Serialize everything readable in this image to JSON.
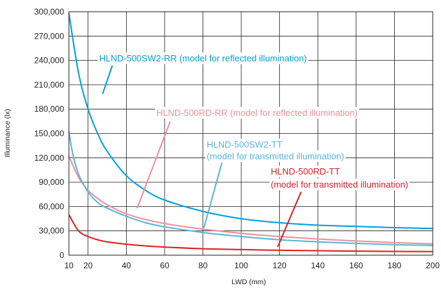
{
  "chart_data": {
    "type": "line",
    "xlabel": "LWD (mm)",
    "ylabel": "Illuminance (lx)",
    "xlim": [
      10,
      200
    ],
    "ylim": [
      0,
      300000
    ],
    "grid": true,
    "x_ticks": [
      "10",
      "20",
      "40",
      "60",
      "80",
      "100",
      "120",
      "140",
      "160",
      "180",
      "200"
    ],
    "y_ticks": [
      "0",
      "30,000",
      "60,000",
      "90,000",
      "120,000",
      "150,000",
      "180,000",
      "210,000",
      "240,000",
      "270,000",
      "300,000"
    ],
    "series": [
      {
        "name": "HLND-500SW2-RR",
        "color": "#00a0dc",
        "x": [
          10,
          15,
          20,
          25,
          30,
          40,
          50,
          60,
          80,
          100,
          120,
          140,
          160,
          180,
          200
        ],
        "y": [
          298000,
          225000,
          180000,
          150000,
          128000,
          98000,
          80000,
          68000,
          54000,
          45000,
          40000,
          37000,
          35500,
          34000,
          33000
        ]
      },
      {
        "name": "HLND-500RD-RR",
        "color": "#f08f98",
        "x": [
          10,
          15,
          20,
          25,
          30,
          40,
          50,
          60,
          80,
          100,
          120,
          140,
          160,
          180,
          200
        ],
        "y": [
          122000,
          96000,
          80000,
          70000,
          62000,
          51000,
          44000,
          39000,
          32000,
          27000,
          23000,
          20000,
          17500,
          15500,
          14000
        ]
      },
      {
        "name": "HLND-500SW2-TT",
        "color": "#5ab4dc",
        "x": [
          10,
          12,
          15,
          20,
          25,
          30,
          40,
          50,
          60,
          80,
          100,
          120,
          140,
          160,
          180,
          200
        ],
        "y": [
          153000,
          125000,
          100000,
          78000,
          65000,
          58000,
          48000,
          40000,
          35000,
          28000,
          23000,
          19000,
          16500,
          14500,
          13000,
          12000
        ]
      },
      {
        "name": "HLND-500RD-TT",
        "color": "#e01f26",
        "x": [
          10,
          15,
          20,
          25,
          30,
          40,
          50,
          60,
          80,
          100,
          120,
          140,
          160,
          180,
          200
        ],
        "y": [
          50000,
          30000,
          23000,
          19000,
          16500,
          13500,
          11500,
          10000,
          8000,
          7000,
          6000,
          5500,
          5000,
          4700,
          4500
        ]
      }
    ],
    "annotations": [
      {
        "text": "HLND-500SW2-RR (model for reflected illumination)",
        "series": 0,
        "color": "#00a0dc"
      },
      {
        "text": "HLND-500RD-RR (model for reflected illumination)",
        "series": 1,
        "color": "#f08f98"
      },
      {
        "text": "HLND-500SW2-TT",
        "series": 2,
        "color": "#5ab4dc"
      },
      {
        "text": "(model for transmitted illumination)",
        "series": 2,
        "color": "#5ab4dc"
      },
      {
        "text": "HLND-500RD-TT",
        "series": 3,
        "color": "#e01f26"
      },
      {
        "text": "(model for transmitted illumination)",
        "series": 3,
        "color": "#e01f26"
      }
    ]
  }
}
